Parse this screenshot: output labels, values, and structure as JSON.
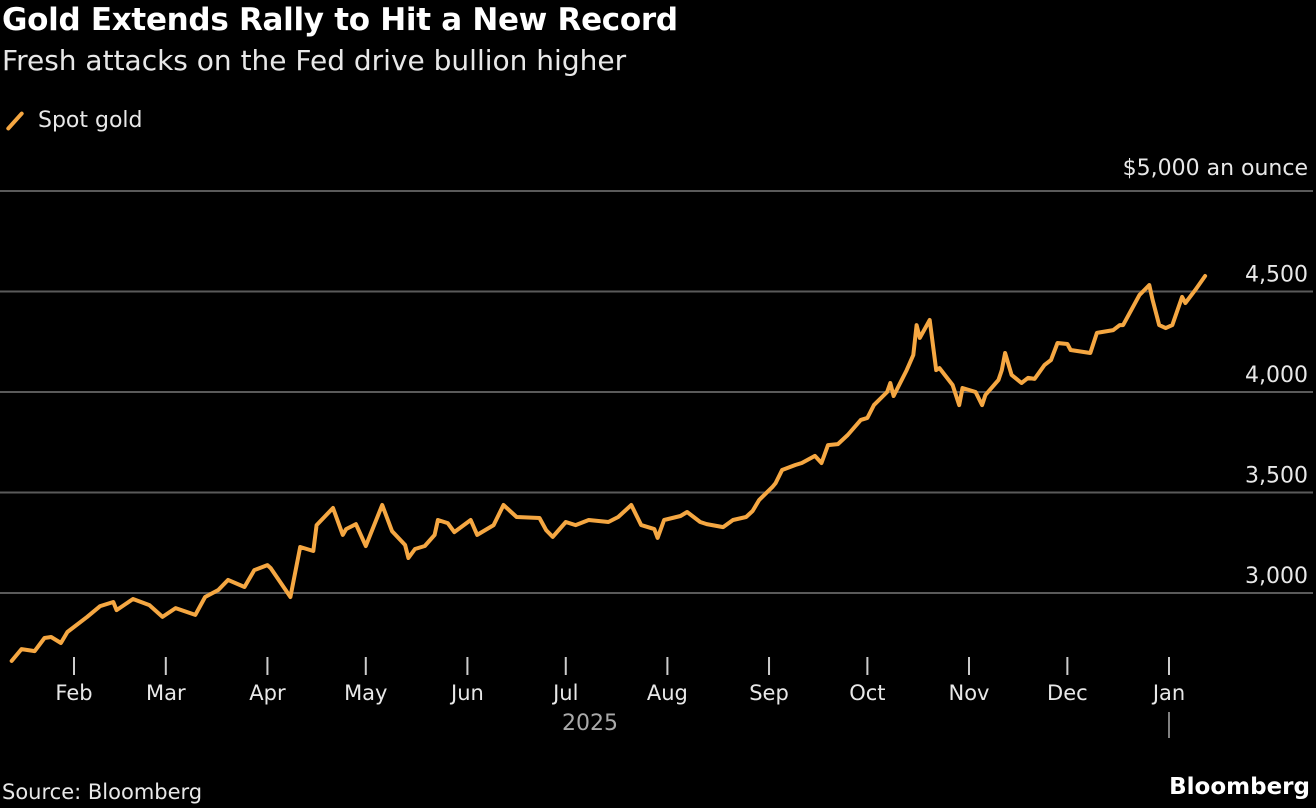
{
  "header": {
    "title": "Gold Extends Rally to Hit a New Record",
    "subtitle": "Fresh attacks on the Fed drive bullion higher"
  },
  "footer": {
    "source": "Source: Bloomberg",
    "brand": "Bloomberg"
  },
  "chart_data": {
    "type": "line",
    "title": "Gold Extends Rally to Hit a New Record",
    "subtitle": "Fresh attacks on the Fed drive bullion higher",
    "legend_position": "top-left",
    "grid": true,
    "y_unit_label": "$5,000 an ounce",
    "ylim": [
      2600,
      5000
    ],
    "y_ticks": [
      {
        "value": 5000,
        "label": "$5,000 an ounce"
      },
      {
        "value": 4500,
        "label": "4,500"
      },
      {
        "value": 4000,
        "label": "4,000"
      },
      {
        "value": 3500,
        "label": "3,500"
      },
      {
        "value": 3000,
        "label": "3,000"
      }
    ],
    "x_ticks": [
      {
        "date": "2025-02-01",
        "label": "Feb"
      },
      {
        "date": "2025-03-01",
        "label": "Mar"
      },
      {
        "date": "2025-04-01",
        "label": "Apr"
      },
      {
        "date": "2025-05-01",
        "label": "May"
      },
      {
        "date": "2025-06-01",
        "label": "Jun"
      },
      {
        "date": "2025-07-01",
        "label": "Jul"
      },
      {
        "date": "2025-08-01",
        "label": "Aug"
      },
      {
        "date": "2025-09-01",
        "label": "Sep"
      },
      {
        "date": "2025-10-01",
        "label": "Oct"
      },
      {
        "date": "2025-11-01",
        "label": "Nov"
      },
      {
        "date": "2025-12-01",
        "label": "Dec"
      },
      {
        "date": "2026-01-01",
        "label": "Jan"
      }
    ],
    "year_label": "2025",
    "series": [
      {
        "name": "Spot gold",
        "color": "#f5a742",
        "x": [
          "2025-01-13",
          "2025-01-16",
          "2025-01-20",
          "2025-01-23",
          "2025-01-25",
          "2025-01-28",
          "2025-01-30",
          "2025-02-05",
          "2025-02-09",
          "2025-02-13",
          "2025-02-14",
          "2025-02-19",
          "2025-02-24",
          "2025-02-28",
          "2025-03-04",
          "2025-03-10",
          "2025-03-13",
          "2025-03-17",
          "2025-03-20",
          "2025-03-25",
          "2025-03-28",
          "2025-04-01",
          "2025-04-02",
          "2025-04-08",
          "2025-04-11",
          "2025-04-15",
          "2025-04-16",
          "2025-04-21",
          "2025-04-24",
          "2025-04-25",
          "2025-04-28",
          "2025-05-01",
          "2025-05-06",
          "2025-05-09",
          "2025-05-13",
          "2025-05-14",
          "2025-05-16",
          "2025-05-19",
          "2025-05-22",
          "2025-05-23",
          "2025-05-26",
          "2025-05-28",
          "2025-06-02",
          "2025-06-04",
          "2025-06-09",
          "2025-06-12",
          "2025-06-16",
          "2025-06-23",
          "2025-06-25",
          "2025-06-27",
          "2025-07-01",
          "2025-07-04",
          "2025-07-08",
          "2025-07-11",
          "2025-07-14",
          "2025-07-17",
          "2025-07-21",
          "2025-07-24",
          "2025-07-28",
          "2025-07-29",
          "2025-07-31",
          "2025-08-05",
          "2025-08-07",
          "2025-08-11",
          "2025-08-13",
          "2025-08-18",
          "2025-08-21",
          "2025-08-25",
          "2025-08-27",
          "2025-08-29",
          "2025-09-02",
          "2025-09-03",
          "2025-09-05",
          "2025-09-09",
          "2025-09-11",
          "2025-09-15",
          "2025-09-17",
          "2025-09-19",
          "2025-09-22",
          "2025-09-25",
          "2025-09-29",
          "2025-10-01",
          "2025-10-03",
          "2025-10-07",
          "2025-10-08",
          "2025-10-09",
          "2025-10-13",
          "2025-10-15",
          "2025-10-16",
          "2025-10-17",
          "2025-10-20",
          "2025-10-22",
          "2025-10-23",
          "2025-10-27",
          "2025-10-29",
          "2025-10-30",
          "2025-11-03",
          "2025-11-05",
          "2025-11-06",
          "2025-11-10",
          "2025-11-11",
          "2025-11-12",
          "2025-11-14",
          "2025-11-17",
          "2025-11-19",
          "2025-11-21",
          "2025-11-24",
          "2025-11-26",
          "2025-11-28",
          "2025-12-01",
          "2025-12-02",
          "2025-12-08",
          "2025-12-10",
          "2025-12-15",
          "2025-12-17",
          "2025-12-18",
          "2025-12-23",
          "2025-12-26",
          "2025-12-27",
          "2025-12-29",
          "2025-12-31",
          "2026-01-02",
          "2026-01-05",
          "2026-01-06",
          "2026-01-09",
          "2026-01-12"
        ],
        "values": [
          2662,
          2721,
          2711,
          2776,
          2781,
          2751,
          2806,
          2881,
          2935,
          2955,
          2915,
          2970,
          2940,
          2881,
          2925,
          2891,
          2980,
          3015,
          3065,
          3030,
          3114,
          3139,
          3124,
          2980,
          3229,
          3209,
          3338,
          3423,
          3289,
          3318,
          3343,
          3234,
          3438,
          3308,
          3239,
          3174,
          3219,
          3234,
          3289,
          3363,
          3348,
          3303,
          3363,
          3289,
          3338,
          3438,
          3378,
          3373,
          3313,
          3279,
          3353,
          3338,
          3363,
          3358,
          3353,
          3378,
          3438,
          3338,
          3318,
          3274,
          3363,
          3383,
          3403,
          3353,
          3343,
          3328,
          3363,
          3378,
          3408,
          3463,
          3527,
          3547,
          3612,
          3637,
          3647,
          3682,
          3647,
          3736,
          3741,
          3786,
          3861,
          3871,
          3935,
          4000,
          4045,
          3980,
          4109,
          4184,
          4333,
          4269,
          4358,
          4109,
          4119,
          4035,
          3935,
          4020,
          4000,
          3935,
          3985,
          4060,
          4109,
          4194,
          4085,
          4045,
          4070,
          4065,
          4134,
          4159,
          4244,
          4239,
          4209,
          4194,
          4294,
          4308,
          4333,
          4333,
          4483,
          4532,
          4458,
          4333,
          4318,
          4333,
          4473,
          4443,
          4507,
          4577
        ]
      }
    ]
  }
}
